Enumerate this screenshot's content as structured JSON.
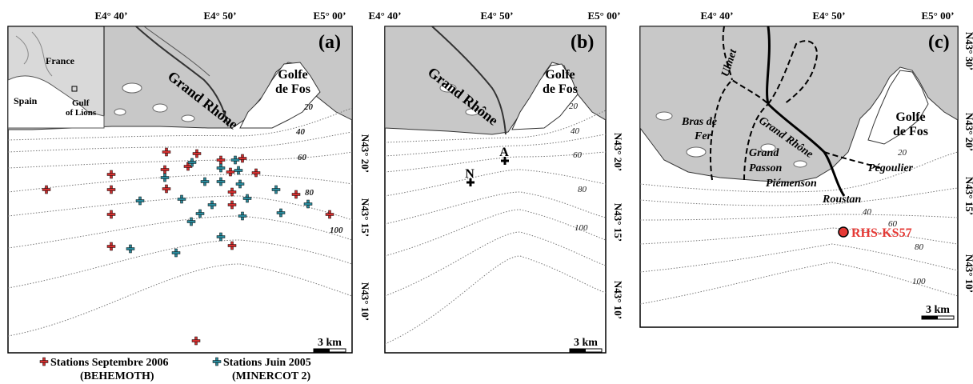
{
  "panels": {
    "a": {
      "letter": "(a)",
      "top_coords": [
        "E4° 40’",
        "E4° 50’",
        "E5° 00’"
      ],
      "right_coords": [
        "N43° 20’",
        "N43° 15’",
        "N43° 10’"
      ],
      "gulf": [
        "Golfe",
        "de Fos"
      ],
      "river": "Grand Rhône",
      "inset": {
        "france": "France",
        "spain": "Spain",
        "gulf": [
          "Gulf",
          "of Lions"
        ]
      },
      "depths": [
        "20",
        "40",
        "60",
        "80",
        "100"
      ],
      "scale": "3 km"
    },
    "b": {
      "letter": "(b)",
      "top_coords": [
        "E4° 40’",
        "E4° 50’",
        "E5° 00’"
      ],
      "right_coords": [
        "N43° 20’",
        "N43° 15’",
        "N43° 10’"
      ],
      "gulf": [
        "Golfe",
        "de Fos"
      ],
      "river": "Grand Rhône",
      "stations": [
        "A",
        "N"
      ],
      "depths": [
        "20",
        "40",
        "60",
        "80",
        "100"
      ],
      "scale": "3 km"
    },
    "c": {
      "letter": "(c)",
      "top_coords": [
        "E4° 40’",
        "E4° 50’",
        "E5° 00’"
      ],
      "right_coords": [
        "N43° 20’",
        "N43° 15’",
        "N43° 10’"
      ],
      "right_coords_top": "N43° 30’",
      "gulf": [
        "Golfe",
        "de Fos"
      ],
      "channels": [
        "Ulmet",
        "Bras de",
        "Fer",
        "Grand Rhône",
        "Grand",
        "Passon",
        "Piémenson",
        "Pégoulier",
        "Roustan"
      ],
      "core": "RHS-KS57",
      "depths": [
        "20",
        "40",
        "60",
        "80",
        "100"
      ],
      "scale": "3 km"
    }
  },
  "legend": {
    "red_line1": "Stations Septembre 2006",
    "red_line2": "(BEHEMOTH)",
    "blue_line1": "Stations Juin 2005",
    "blue_line2": "(MINERCOT 2)"
  },
  "colors": {
    "land": "#c8c8c8",
    "red_station": "#d32f2f",
    "blue_station": "#2a8a9c",
    "core": "#e53935"
  }
}
